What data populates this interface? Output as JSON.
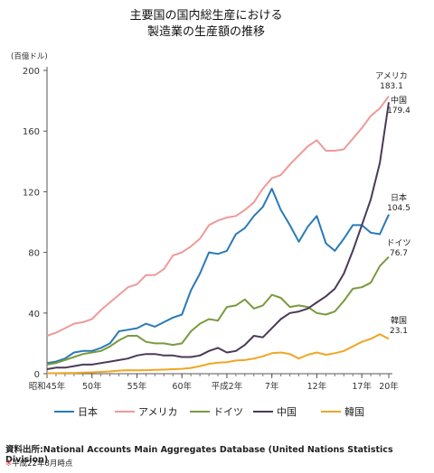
{
  "chart_data": {
    "type": "line",
    "title_lines": [
      "主要国の国内総生産における",
      "製造業の生産額の推移"
    ],
    "unit_label": "(百億ドル)",
    "ylim": [
      0,
      200
    ],
    "yticks": [
      0,
      40,
      80,
      120,
      160,
      200
    ],
    "x": [
      1970,
      1971,
      1972,
      1973,
      1974,
      1975,
      1976,
      1977,
      1978,
      1979,
      1980,
      1981,
      1982,
      1983,
      1984,
      1985,
      1986,
      1987,
      1988,
      1989,
      1990,
      1991,
      1992,
      1993,
      1994,
      1995,
      1996,
      1997,
      1998,
      1999,
      2000,
      2001,
      2002,
      2003,
      2004,
      2005,
      2006,
      2007,
      2008
    ],
    "x_tick_labels": [
      {
        "x": 1970,
        "label": "昭和45年"
      },
      {
        "x": 1975,
        "label": "50年"
      },
      {
        "x": 1980,
        "label": "55年"
      },
      {
        "x": 1985,
        "label": "60年"
      },
      {
        "x": 1990,
        "label": "平成2年"
      },
      {
        "x": 1995,
        "label": "7年"
      },
      {
        "x": 2000,
        "label": "12年"
      },
      {
        "x": 2005,
        "label": "17年"
      },
      {
        "x": 2008,
        "label": "20年"
      }
    ],
    "series": [
      {
        "name": "日本",
        "color": "#2a7ab8",
        "values": [
          7,
          8,
          10,
          14,
          15,
          15,
          17,
          20,
          28,
          29,
          30,
          33,
          31,
          34,
          37,
          39,
          55,
          66,
          80,
          79,
          81,
          92,
          96,
          104,
          110,
          122,
          108,
          98,
          87,
          97,
          104,
          86,
          81,
          89,
          98,
          98,
          93,
          92,
          105
        ]
      },
      {
        "name": "アメリカ",
        "color": "#ee9a9a",
        "values": [
          25,
          27,
          30,
          33,
          34,
          36,
          42,
          47,
          52,
          57,
          59,
          65,
          65,
          69,
          78,
          80,
          84,
          89,
          98,
          101,
          103,
          104,
          108,
          113,
          122,
          129,
          131,
          138,
          144,
          150,
          154,
          147,
          147,
          148,
          155,
          162,
          170,
          175,
          183
        ]
      },
      {
        "name": "ドイツ",
        "color": "#7a9a3c",
        "values": [
          6,
          7,
          9,
          11,
          13,
          14,
          15,
          18,
          22,
          25,
          25,
          21,
          20,
          20,
          19,
          20,
          28,
          33,
          36,
          35,
          44,
          45,
          49,
          43,
          45,
          52,
          50,
          44,
          45,
          44,
          40,
          39,
          41,
          48,
          56,
          57,
          60,
          71,
          77
        ]
      },
      {
        "name": "中国",
        "color": "#4a3a5a",
        "values": [
          3,
          4,
          4,
          5,
          6,
          6,
          7,
          8,
          9,
          10,
          12,
          13,
          13,
          12,
          12,
          11,
          11,
          12,
          15,
          17,
          14,
          15,
          19,
          25,
          24,
          30,
          36,
          40,
          41,
          43,
          47,
          51,
          56,
          66,
          81,
          98,
          115,
          139,
          179
        ]
      },
      {
        "name": "韓国",
        "color": "#f0a623",
        "values": [
          0.3,
          0.3,
          0.4,
          0.5,
          0.7,
          0.9,
          1.2,
          1.5,
          2,
          2.3,
          2.2,
          2.3,
          2.5,
          2.7,
          3,
          3.2,
          3.8,
          5,
          6.5,
          7.3,
          7.6,
          8.7,
          9,
          10,
          11.5,
          13.5,
          14,
          13,
          10,
          12.5,
          14,
          12.5,
          13.5,
          15,
          18,
          21,
          23,
          26,
          23
        ]
      }
    ],
    "end_labels": [
      {
        "series": "アメリカ",
        "lines": [
          "アメリカ",
          "183.1"
        ]
      },
      {
        "series": "中国",
        "lines": [
          "中国",
          "179.4"
        ]
      },
      {
        "series": "日本",
        "lines": [
          "日本",
          "104.5"
        ]
      },
      {
        "series": "ドイツ",
        "lines": [
          "ドイツ",
          "76.7"
        ]
      },
      {
        "series": "韓国",
        "lines": [
          "韓国",
          "23.1"
        ]
      }
    ],
    "grid": false,
    "legend_position": "bottom"
  },
  "footer": {
    "source": "資料出所:National Accounts Main Aggregates Database (United Nations Statistics Division)",
    "note_mark": "※",
    "note": "平成22年8月時点"
  }
}
